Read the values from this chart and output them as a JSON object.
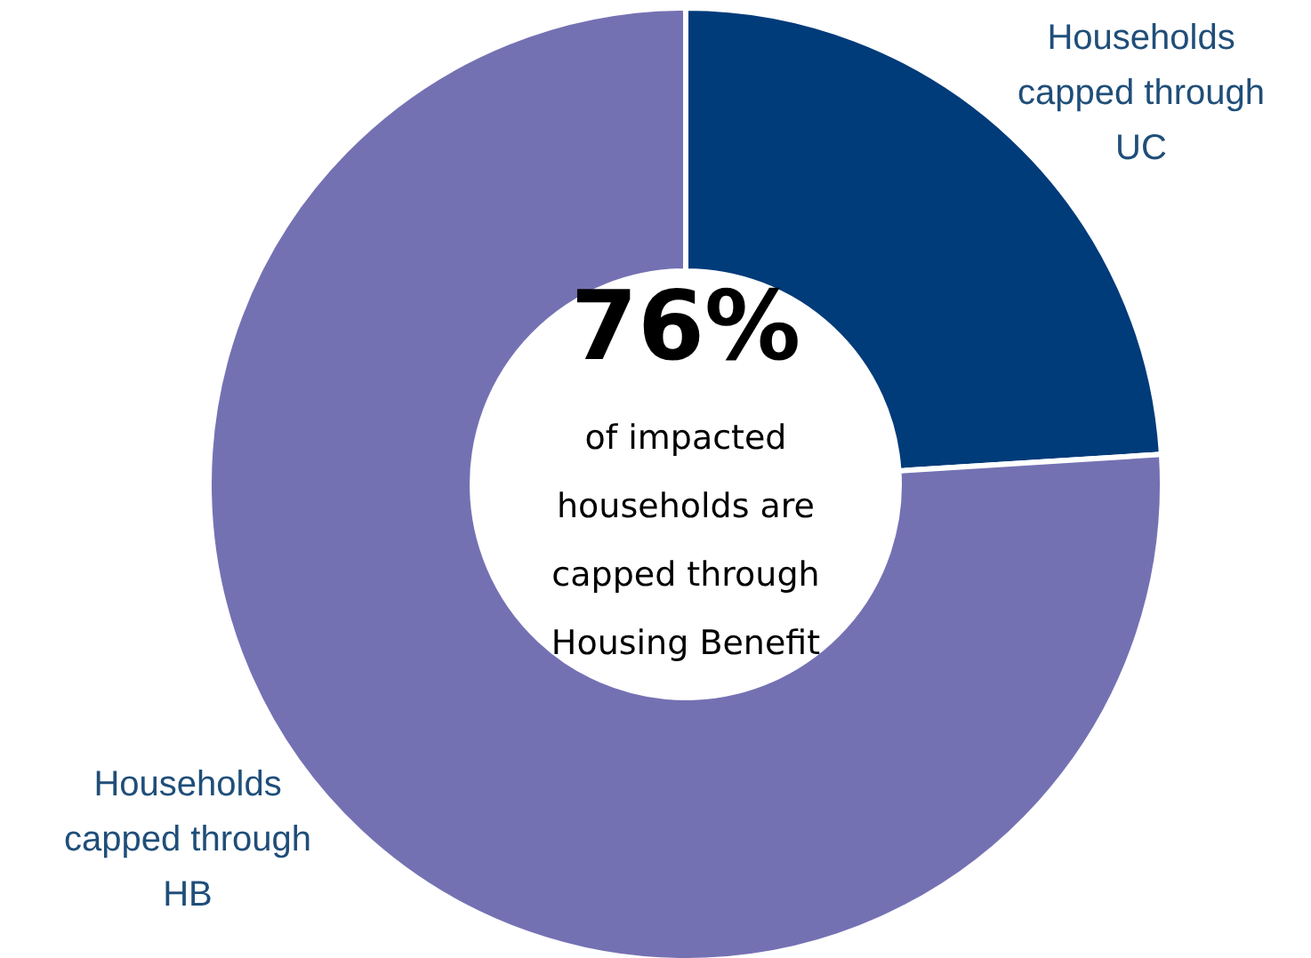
{
  "chart_data": {
    "type": "donut",
    "categories": [
      "Households capped through UC",
      "Households capped through HB"
    ],
    "values": [
      24,
      76
    ],
    "colors": [
      "#003b7a",
      "#7471b3"
    ],
    "annotations": [
      "76%",
      "of impacted households are capped through Housing Benefit"
    ]
  }
}
